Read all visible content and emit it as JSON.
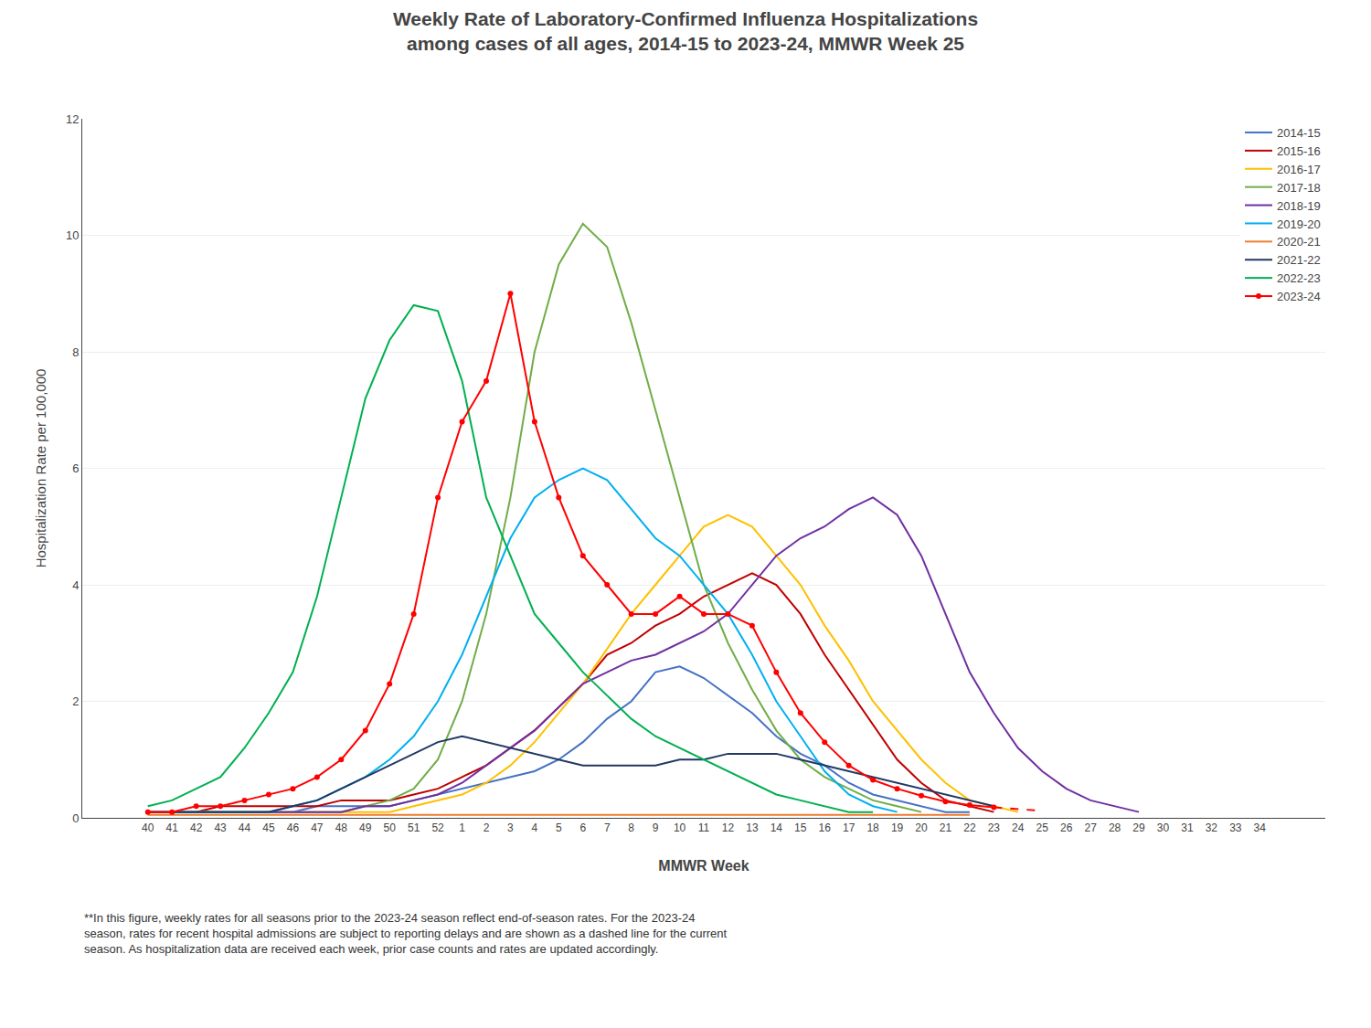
{
  "chart_data": {
    "type": "line",
    "title": "Weekly Rate of Laboratory-Confirmed Influenza Hospitalizations\namong cases of all ages, 2014-15 to 2023-24, MMWR Week 25",
    "x_label": "MMWR Week",
    "y_label": "Hospitalization Rate per 100,000",
    "annotations": [
      "**In this figure, weekly rates for all seasons prior to the 2023-24 season reflect end-of-season rates. For the 2023-24\nseason, rates for recent hospital admissions are subject to reporting delays and are shown as a dashed line for the current\nseason. As hospitalization data are received each week, prior case counts and rates are updated accordingly."
    ],
    "categories": [
      "40",
      "41",
      "42",
      "43",
      "44",
      "45",
      "46",
      "47",
      "48",
      "49",
      "50",
      "51",
      "52",
      "1",
      "2",
      "3",
      "4",
      "5",
      "6",
      "7",
      "8",
      "9",
      "10",
      "11",
      "12",
      "13",
      "14",
      "15",
      "16",
      "17",
      "18",
      "19",
      "20",
      "21",
      "22",
      "23",
      "24",
      "25",
      "26",
      "27",
      "28",
      "29",
      "30",
      "31",
      "32",
      "33",
      "34"
    ],
    "ylim": [
      0,
      12
    ],
    "yticks": [
      0,
      2,
      4,
      6,
      8,
      10,
      12
    ],
    "grid": true,
    "legend": "upper right",
    "series": [
      {
        "name": "2014-15",
        "color": "#4472c4",
        "values": [
          0.1,
          0.1,
          0.1,
          0.1,
          0.1,
          0.1,
          0.1,
          0.2,
          0.2,
          0.2,
          0.2,
          0.3,
          0.4,
          0.5,
          0.6,
          0.7,
          0.8,
          1.0,
          1.3,
          1.7,
          2.0,
          2.5,
          2.6,
          2.4,
          2.1,
          1.8,
          1.4,
          1.1,
          0.9,
          0.6,
          0.4,
          0.3,
          0.2,
          0.1,
          0.1,
          null,
          null,
          null,
          null,
          null,
          null,
          null,
          null,
          null,
          null,
          null,
          null
        ]
      },
      {
        "name": "2015-16",
        "color": "#c00000",
        "values": [
          0.1,
          0.1,
          0.1,
          0.2,
          0.2,
          0.2,
          0.2,
          0.2,
          0.3,
          0.3,
          0.3,
          0.4,
          0.5,
          0.7,
          0.9,
          1.2,
          1.5,
          1.9,
          2.3,
          2.8,
          3.0,
          3.3,
          3.5,
          3.8,
          4.0,
          4.2,
          4.0,
          3.5,
          2.8,
          2.2,
          1.6,
          1.0,
          0.6,
          0.3,
          0.2,
          0.1,
          null,
          null,
          null,
          null,
          null,
          null,
          null,
          null,
          null,
          null,
          null
        ]
      },
      {
        "name": "2016-17",
        "color": "#ffc000",
        "values": [
          0.1,
          0.1,
          0.1,
          0.1,
          0.1,
          0.1,
          0.1,
          0.1,
          0.1,
          0.1,
          0.1,
          0.2,
          0.3,
          0.4,
          0.6,
          0.9,
          1.3,
          1.8,
          2.3,
          2.9,
          3.5,
          4.0,
          4.5,
          5.0,
          5.2,
          5.0,
          4.5,
          4.0,
          3.3,
          2.7,
          2.0,
          1.5,
          1.0,
          0.6,
          0.3,
          0.2,
          0.1,
          null,
          null,
          null,
          null,
          null,
          null,
          null,
          null,
          null,
          null
        ]
      },
      {
        "name": "2017-18",
        "color": "#70ad47",
        "values": [
          0.1,
          0.1,
          0.1,
          0.1,
          0.1,
          0.1,
          0.1,
          0.1,
          0.1,
          0.2,
          0.3,
          0.5,
          1.0,
          2.0,
          3.5,
          5.5,
          8.0,
          9.5,
          10.2,
          9.8,
          8.5,
          7.0,
          5.5,
          4.0,
          3.0,
          2.2,
          1.5,
          1.0,
          0.7,
          0.5,
          0.3,
          0.2,
          0.1,
          null,
          null,
          null,
          null,
          null,
          null,
          null,
          null,
          null,
          null,
          null,
          null,
          null,
          null
        ]
      },
      {
        "name": "2018-19",
        "color": "#7030a0",
        "values": [
          0.1,
          0.1,
          0.1,
          0.1,
          0.1,
          0.1,
          0.1,
          0.1,
          0.1,
          0.2,
          0.2,
          0.3,
          0.4,
          0.6,
          0.9,
          1.2,
          1.5,
          1.9,
          2.3,
          2.5,
          2.7,
          2.8,
          3.0,
          3.2,
          3.5,
          4.0,
          4.5,
          4.8,
          5.0,
          5.3,
          5.5,
          5.2,
          4.5,
          3.5,
          2.5,
          1.8,
          1.2,
          0.8,
          0.5,
          0.3,
          0.2,
          0.1,
          null,
          null,
          null,
          null,
          null
        ]
      },
      {
        "name": "2019-20",
        "color": "#00b0f0",
        "values": [
          0.1,
          0.1,
          0.1,
          0.1,
          0.1,
          0.1,
          0.2,
          0.3,
          0.5,
          0.7,
          1.0,
          1.4,
          2.0,
          2.8,
          3.8,
          4.8,
          5.5,
          5.8,
          6.0,
          5.8,
          5.3,
          4.8,
          4.5,
          4.0,
          3.5,
          2.8,
          2.0,
          1.4,
          0.8,
          0.4,
          0.2,
          0.1,
          null,
          null,
          null,
          null,
          null,
          null,
          null,
          null,
          null,
          null,
          null,
          null,
          null,
          null,
          null
        ]
      },
      {
        "name": "2020-21",
        "color": "#ed7d31",
        "values": [
          0.05,
          0.05,
          0.05,
          0.05,
          0.05,
          0.05,
          0.05,
          0.05,
          0.05,
          0.05,
          0.05,
          0.05,
          0.05,
          0.05,
          0.05,
          0.05,
          0.05,
          0.05,
          0.05,
          0.05,
          0.05,
          0.05,
          0.05,
          0.05,
          0.05,
          0.05,
          0.05,
          0.05,
          0.05,
          0.05,
          0.05,
          0.05,
          0.05,
          0.05,
          0.05,
          null,
          null,
          null,
          null,
          null,
          null,
          null,
          null,
          null,
          null,
          null,
          null
        ]
      },
      {
        "name": "2021-22",
        "color": "#203864",
        "values": [
          0.1,
          0.1,
          0.1,
          0.1,
          0.1,
          0.1,
          0.2,
          0.3,
          0.5,
          0.7,
          0.9,
          1.1,
          1.3,
          1.4,
          1.3,
          1.2,
          1.1,
          1.0,
          0.9,
          0.9,
          0.9,
          0.9,
          1.0,
          1.0,
          1.1,
          1.1,
          1.1,
          1.0,
          0.9,
          0.8,
          0.7,
          0.6,
          0.5,
          0.4,
          0.3,
          0.2,
          null,
          null,
          null,
          null,
          null,
          null,
          null,
          null,
          null,
          null,
          null
        ]
      },
      {
        "name": "2022-23",
        "color": "#00b050",
        "values": [
          0.2,
          0.3,
          0.5,
          0.7,
          1.2,
          1.8,
          2.5,
          3.8,
          5.5,
          7.2,
          8.2,
          8.8,
          8.7,
          7.5,
          5.5,
          4.5,
          3.5,
          3.0,
          2.5,
          2.1,
          1.7,
          1.4,
          1.2,
          1.0,
          0.8,
          0.6,
          0.4,
          0.3,
          0.2,
          0.1,
          0.1,
          null,
          null,
          null,
          null,
          null,
          null,
          null,
          null,
          null,
          null,
          null,
          null,
          null,
          null,
          null,
          null
        ]
      },
      {
        "name": "2023-24",
        "color": "#ff0000",
        "marker": "circle",
        "values": [
          0.1,
          0.1,
          0.2,
          0.2,
          0.3,
          0.4,
          0.5,
          0.7,
          1.0,
          1.5,
          2.3,
          3.5,
          5.5,
          6.8,
          7.5,
          9.0,
          6.8,
          5.5,
          4.5,
          4.0,
          3.5,
          3.5,
          3.8,
          3.5,
          3.5,
          3.3,
          2.5,
          1.8,
          1.3,
          0.9,
          0.65,
          0.5,
          0.38,
          0.28,
          0.22,
          0.18,
          null,
          null,
          null,
          null,
          null,
          null,
          null,
          null,
          null,
          null,
          null
        ]
      },
      {
        "name": "2023-24",
        "color": "#ff0000",
        "line_style": "dashed",
        "values": [
          null,
          null,
          null,
          null,
          null,
          null,
          null,
          null,
          null,
          null,
          null,
          null,
          null,
          null,
          null,
          null,
          null,
          null,
          null,
          null,
          null,
          null,
          null,
          null,
          null,
          null,
          null,
          null,
          null,
          null,
          null,
          null,
          null,
          null,
          null,
          0.18,
          0.15,
          0.12,
          null,
          null,
          null,
          null,
          null,
          null,
          null,
          null,
          null
        ]
      }
    ]
  }
}
